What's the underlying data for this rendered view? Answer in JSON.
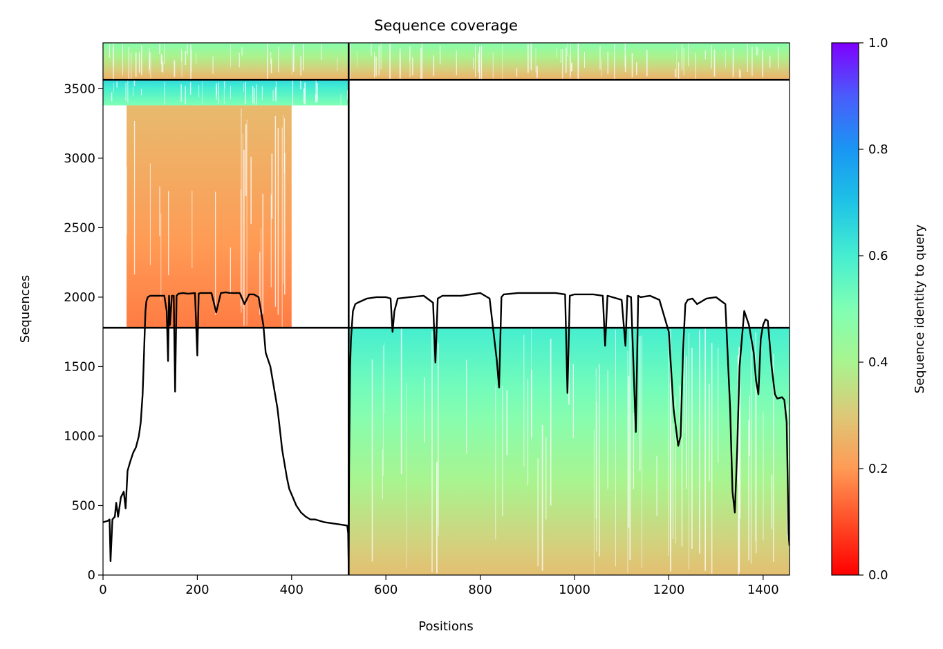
{
  "chart_data": {
    "type": "heatmap",
    "title": "Sequence coverage",
    "xlabel": "Positions",
    "ylabel": "Sequences",
    "xlim": [
      0,
      1456
    ],
    "ylim": [
      0,
      3830
    ],
    "x_ticks": [
      0,
      200,
      400,
      600,
      800,
      1000,
      1200,
      1400
    ],
    "y_ticks": [
      0,
      500,
      1000,
      1500,
      2000,
      2500,
      3000,
      3500
    ],
    "colorbar": {
      "label": "Sequence identity to query",
      "range": [
        0,
        1
      ],
      "ticks": [
        "0.0",
        "0.2",
        "0.4",
        "0.6",
        "0.8",
        "1.0"
      ],
      "colormap": "rainbow_r"
    },
    "chain_boundary_x": 521,
    "group_boundaries_y": [
      1780,
      3565
    ],
    "blocks": [
      {
        "name": "chain2-pairs",
        "x": [
          521,
          1456
        ],
        "y": [
          0,
          1780
        ],
        "identity_bottom": 0.28,
        "identity_top": 0.6
      },
      {
        "name": "chain1-pairs",
        "x": [
          50,
          400
        ],
        "y": [
          1780,
          3380
        ],
        "identity_bottom": 0.16,
        "identity_top": 0.27
      },
      {
        "name": "chain1-top",
        "x": [
          0,
          521
        ],
        "y": [
          3380,
          3565
        ],
        "identity_bottom": 0.5,
        "identity_top": 0.65
      },
      {
        "name": "joint-top",
        "x": [
          0,
          1456
        ],
        "y": [
          3565,
          3830
        ],
        "identity_bottom": 0.25,
        "identity_top": 0.48
      }
    ],
    "coverage_series": {
      "name": "",
      "x": [
        0,
        10,
        14,
        16,
        20,
        25,
        28,
        32,
        38,
        44,
        48,
        52,
        58,
        64,
        70,
        76,
        80,
        84,
        86,
        88,
        90,
        92,
        95,
        100,
        105,
        110,
        120,
        130,
        135,
        138,
        140,
        142,
        146,
        150,
        153,
        156,
        160,
        170,
        180,
        195,
        200,
        203,
        206,
        210,
        220,
        230,
        240,
        250,
        260,
        270,
        280,
        290,
        300,
        310,
        320,
        330,
        340,
        345,
        350,
        355,
        360,
        365,
        370,
        375,
        380,
        385,
        390,
        395,
        400,
        410,
        420,
        430,
        440,
        450,
        460,
        470,
        480,
        490,
        500,
        510,
        518,
        520,
        521,
        522,
        524,
        526,
        530,
        535,
        540,
        560,
        580,
        600,
        610,
        614,
        618,
        625,
        650,
        680,
        700,
        705,
        710,
        720,
        760,
        800,
        820,
        835,
        840,
        845,
        850,
        880,
        920,
        960,
        980,
        985,
        990,
        1000,
        1040,
        1060,
        1065,
        1070,
        1080,
        1100,
        1108,
        1112,
        1120,
        1130,
        1135,
        1140,
        1160,
        1180,
        1200,
        1210,
        1220,
        1225,
        1230,
        1235,
        1240,
        1250,
        1260,
        1280,
        1300,
        1320,
        1330,
        1335,
        1340,
        1345,
        1350,
        1360,
        1370,
        1380,
        1385,
        1390,
        1395,
        1400,
        1405,
        1410,
        1418,
        1425,
        1430,
        1440,
        1445,
        1450,
        1452,
        1454,
        1456
      ],
      "y": [
        380,
        390,
        400,
        100,
        400,
        420,
        520,
        420,
        560,
        600,
        480,
        750,
        820,
        880,
        920,
        1000,
        1100,
        1300,
        1500,
        1700,
        1900,
        1970,
        2000,
        2010,
        2010,
        2010,
        2010,
        2010,
        1900,
        1540,
        2010,
        1800,
        2010,
        2010,
        1320,
        2010,
        2025,
        2030,
        2025,
        2030,
        1580,
        2025,
        2030,
        2030,
        2030,
        2030,
        1890,
        2030,
        2035,
        2030,
        2030,
        2030,
        1950,
        2020,
        2020,
        2000,
        1800,
        1600,
        1550,
        1500,
        1400,
        1300,
        1200,
        1050,
        900,
        800,
        700,
        620,
        580,
        500,
        450,
        420,
        400,
        400,
        390,
        380,
        375,
        370,
        365,
        360,
        355,
        300,
        50,
        800,
        1500,
        1700,
        1900,
        1950,
        1960,
        1990,
        2000,
        2000,
        1990,
        1750,
        1900,
        1990,
        2000,
        2010,
        1960,
        1530,
        1990,
        2010,
        2010,
        2030,
        1990,
        1550,
        1350,
        2000,
        2020,
        2030,
        2030,
        2030,
        2020,
        1310,
        2010,
        2020,
        2020,
        2010,
        1650,
        2010,
        2000,
        1980,
        1650,
        2010,
        2000,
        1030,
        2010,
        2000,
        2010,
        1980,
        1750,
        1200,
        930,
        1000,
        1600,
        1950,
        1980,
        1990,
        1950,
        1990,
        2000,
        1950,
        1200,
        600,
        450,
        900,
        1500,
        1900,
        1800,
        1600,
        1400,
        1300,
        1700,
        1800,
        1840,
        1830,
        1500,
        1300,
        1270,
        1280,
        1260,
        1100,
        700,
        300,
        210
      ]
    }
  }
}
